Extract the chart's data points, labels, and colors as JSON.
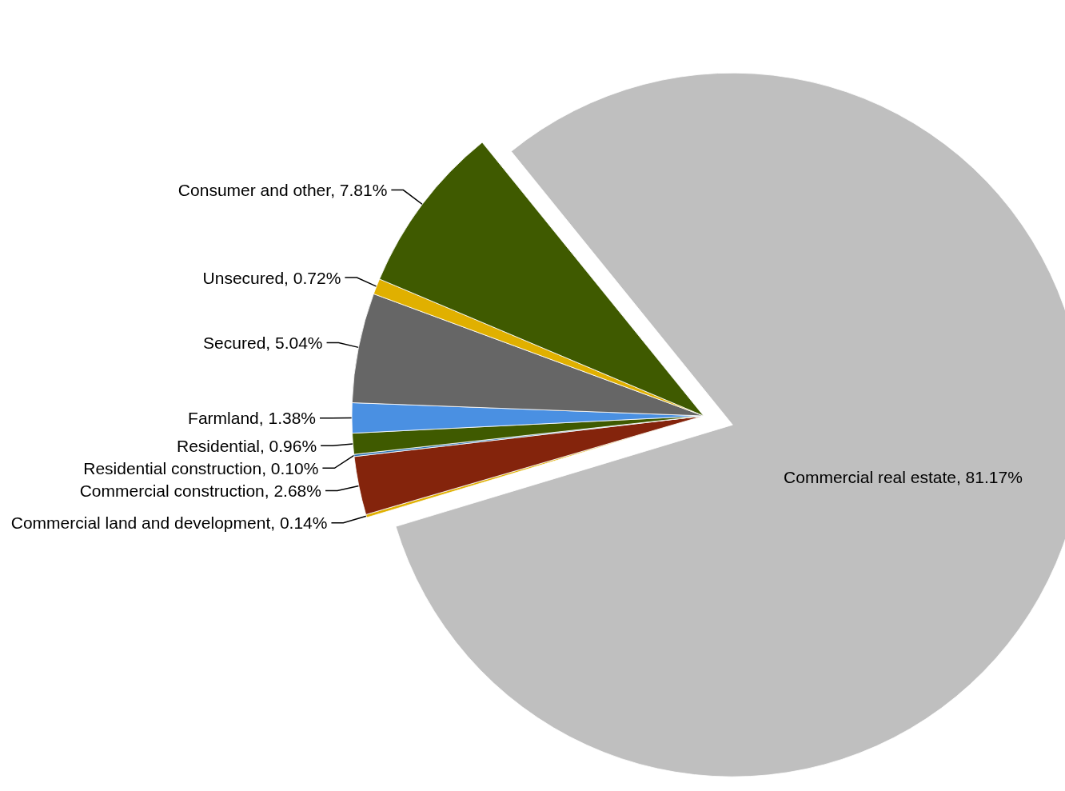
{
  "chart_data": {
    "type": "pie",
    "categories": [
      "Commercial real estate",
      "Commercial land and development",
      "Commercial construction",
      "Residential construction",
      "Residential",
      "Farmland",
      "Secured",
      "Unsecured",
      "Consumer and other"
    ],
    "values": [
      81.17,
      0.14,
      2.68,
      0.1,
      0.96,
      1.38,
      5.04,
      0.72,
      7.81
    ],
    "value_labels": [
      "81.17%",
      "0.14%",
      "2.68%",
      "0.10%",
      "0.96%",
      "1.38%",
      "5.04%",
      "0.72%",
      "7.81%"
    ],
    "colors": [
      "#bfbfbf",
      "#e0b000",
      "#84240c",
      "#2e75b6",
      "#3f5a00",
      "#4a90e2",
      "#666666",
      "#e0b000",
      "#3f5a00"
    ],
    "legend": false
  }
}
